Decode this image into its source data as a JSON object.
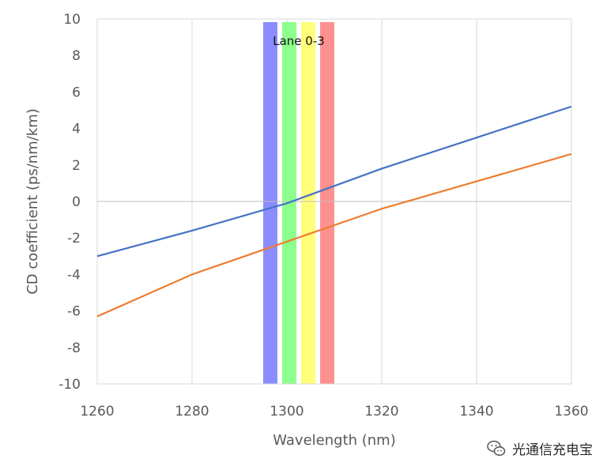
{
  "chart_data": {
    "type": "line",
    "title": "",
    "xlabel": "Wavelength (nm)",
    "ylabel": "CD coefficient (ps/nm/km)",
    "xlim": [
      1260,
      1360
    ],
    "ylim": [
      -10,
      10
    ],
    "x_ticks": [
      1260,
      1280,
      1300,
      1320,
      1340,
      1360
    ],
    "y_ticks": [
      -10,
      -8,
      -6,
      -4,
      -2,
      0,
      2,
      4,
      6,
      8,
      10
    ],
    "grid": "vertical",
    "series": [
      {
        "color": "#4472C4",
        "x": [
          1260,
          1280,
          1300,
          1320,
          1340,
          1360
        ],
        "y": [
          -3.0,
          -1.6,
          -0.1,
          1.8,
          3.5,
          5.2
        ]
      },
      {
        "color": "#ED7D31",
        "x": [
          1260,
          1280,
          1300,
          1320,
          1340,
          1360
        ],
        "y": [
          -6.3,
          -4.0,
          -2.2,
          -0.4,
          1.1,
          2.6
        ]
      }
    ],
    "bands": [
      {
        "x0": 1295,
        "x1": 1298,
        "color": "#8A8CFF"
      },
      {
        "x0": 1299,
        "x1": 1302,
        "color": "#8CFF8C"
      },
      {
        "x0": 1303,
        "x1": 1306,
        "color": "#FFFF7A"
      },
      {
        "x0": 1307,
        "x1": 1310,
        "color": "#FF9090"
      }
    ],
    "band_label": "Lane 0-3"
  },
  "watermark": {
    "text": "光通信充电宝",
    "icon": "wechat-icon"
  }
}
